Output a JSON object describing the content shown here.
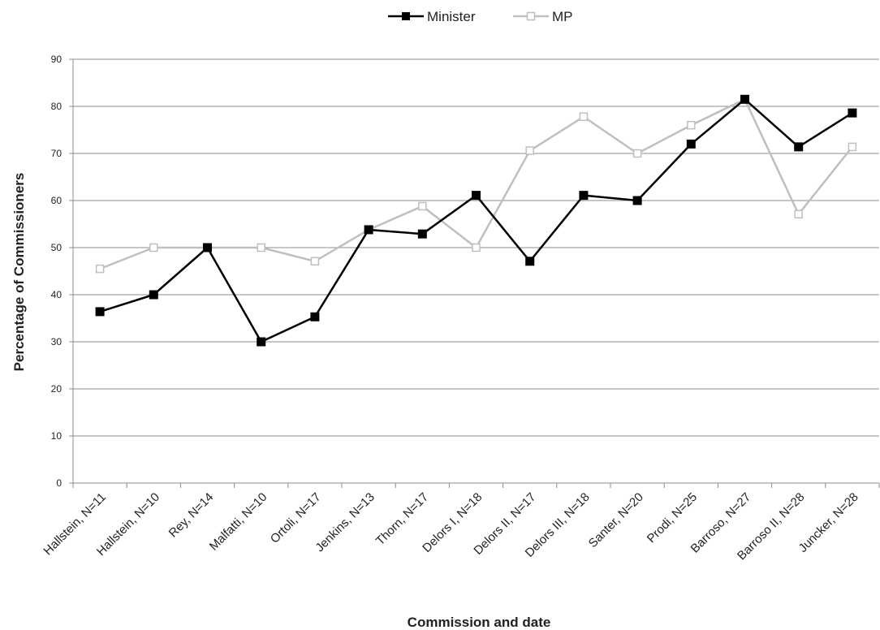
{
  "chart_data": {
    "type": "line",
    "title": "",
    "xlabel": "Commission and date",
    "ylabel": "Percentage of Commissioners",
    "ylim": [
      0,
      90
    ],
    "yticks": [
      0,
      10,
      20,
      30,
      40,
      50,
      60,
      70,
      80,
      90
    ],
    "grid": true,
    "legend_position": "top-center",
    "categories": [
      "Hallstein, N=11",
      "Hallstein, N=10",
      "Rey,     N=14",
      "Malfatti, N=10",
      "Ortoli, N=17",
      "Jenkins, N=13",
      "Thorn, N=17",
      "Delors I, N=18",
      "Delors II, N=17",
      "Delors III, N=18",
      "Santer, N=20",
      "Prodi, N=25",
      "Barroso, N=27",
      "Barroso II, N=28",
      "Juncker, N=28"
    ],
    "series": [
      {
        "name": "Minister",
        "color": "#000000",
        "marker": "filled-square",
        "values": [
          36.4,
          40,
          50,
          30,
          35.3,
          53.8,
          52.9,
          61.1,
          47.1,
          61.1,
          60,
          72,
          81.5,
          71.4,
          78.6
        ]
      },
      {
        "name": "MP",
        "color": "#bfbfbf",
        "marker": "hollow-square",
        "values": [
          45.5,
          50,
          50,
          50,
          47.1,
          53.8,
          58.8,
          50,
          70.6,
          77.8,
          70,
          76,
          81.5,
          57.1,
          71.4
        ]
      }
    ]
  }
}
